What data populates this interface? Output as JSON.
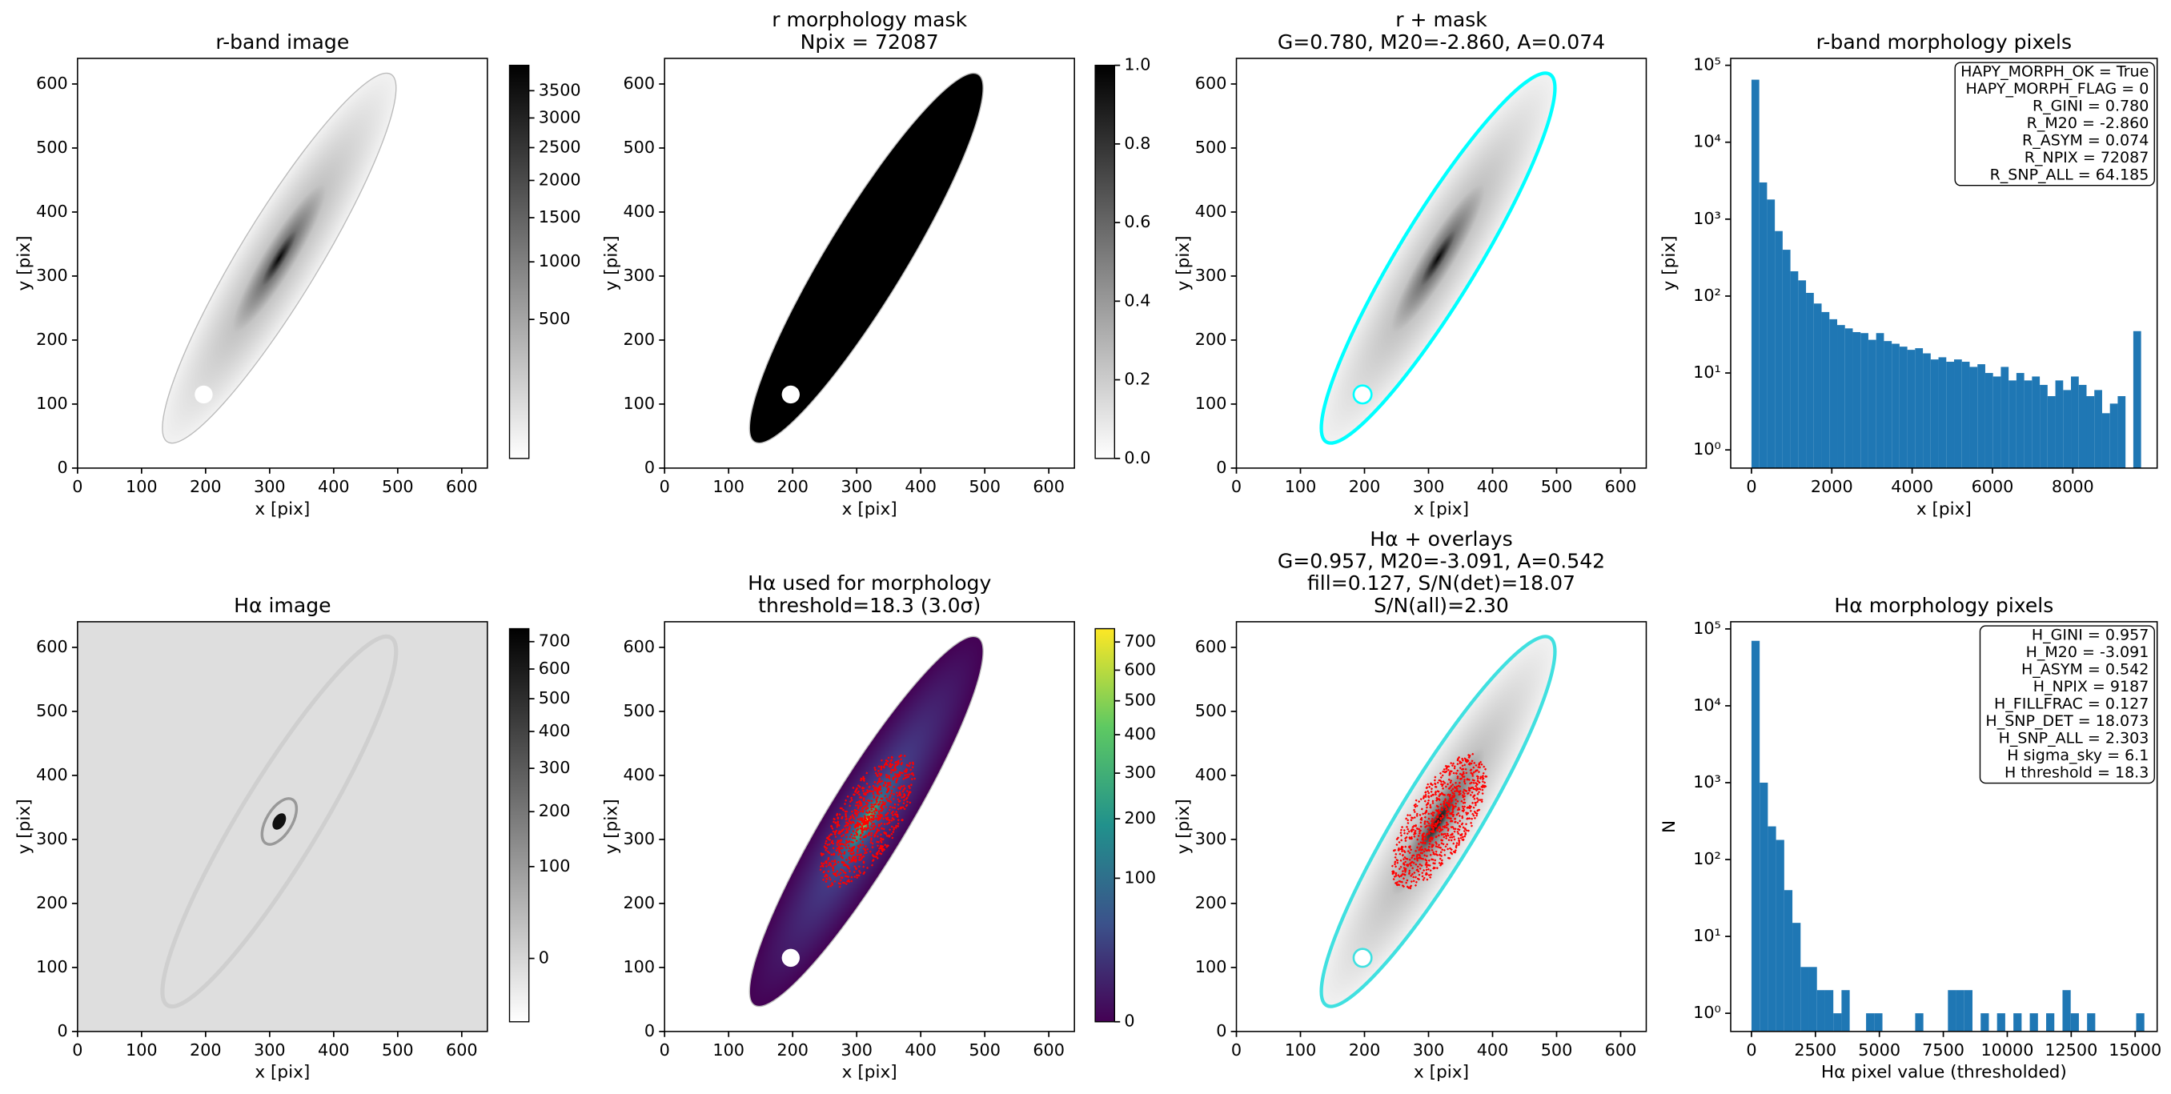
{
  "chart_data": [
    {
      "type": "image",
      "title": [
        "r-band image"
      ],
      "xlabel": "x [pix]",
      "ylabel": "y [pix]",
      "xlim": [
        0,
        640
      ],
      "ylim": [
        0,
        640
      ],
      "xticks": [
        0,
        100,
        200,
        300,
        400,
        500,
        600
      ],
      "yticks": [
        0,
        100,
        200,
        300,
        400,
        500,
        600
      ],
      "colormap": "gray_r",
      "colorbar": {
        "lim": [
          0,
          4000
        ],
        "scale": "sqrt",
        "ticks": [
          500,
          1000,
          1500,
          2000,
          2500,
          3000,
          3500
        ]
      }
    },
    {
      "type": "image",
      "title": [
        "r morphology mask",
        "Npix = 72087"
      ],
      "xlabel": "x [pix]",
      "ylabel": "y [pix]",
      "xlim": [
        0,
        640
      ],
      "ylim": [
        0,
        640
      ],
      "xticks": [
        0,
        100,
        200,
        300,
        400,
        500,
        600
      ],
      "yticks": [
        0,
        100,
        200,
        300,
        400,
        500,
        600
      ],
      "colormap": "binary",
      "colorbar": {
        "lim": [
          0,
          1
        ],
        "scale": "linear",
        "ticks": [
          {
            "value": 0,
            "label": "0.0"
          },
          0.2,
          0.4,
          0.6,
          0.8,
          {
            "value": 1,
            "label": "1.0"
          }
        ]
      }
    },
    {
      "type": "image",
      "title": [
        "r + mask",
        "G=0.780, M20=-2.860, A=0.074"
      ],
      "xlabel": "x [pix]",
      "ylabel": "y [pix]",
      "xlim": [
        0,
        640
      ],
      "ylim": [
        0,
        640
      ],
      "xticks": [
        0,
        100,
        200,
        300,
        400,
        500,
        600
      ],
      "yticks": [
        0,
        100,
        200,
        300,
        400,
        500,
        600
      ],
      "colormap": "gray_r",
      "contour_color": "#00ffff"
    },
    {
      "type": "histogram",
      "title": [
        "r-band morphology pixels"
      ],
      "xlabel": "x [pix]",
      "ylabel": "y [pix]",
      "bins": [
        0,
        194,
        388,
        582,
        776,
        970,
        1164,
        1358,
        1552,
        1746,
        1940,
        2134,
        2328,
        2522,
        2716,
        2910,
        3104,
        3298,
        3492,
        3686,
        3880,
        4074,
        4268,
        4462,
        4656,
        4850,
        5044,
        5238,
        5432,
        5626,
        5820,
        6014,
        6208,
        6402,
        6596,
        6790,
        6984,
        7178,
        7372,
        7566,
        7760,
        7954,
        8148,
        8342,
        8536,
        8730,
        8924,
        9118,
        9312,
        9506,
        9700
      ],
      "values": [
        65000,
        3000,
        1800,
        700,
        400,
        210,
        160,
        110,
        80,
        62,
        50,
        42,
        38,
        34,
        33,
        27,
        33,
        26,
        24,
        22,
        20,
        21,
        18,
        15,
        16,
        14,
        15,
        14,
        12,
        13,
        10,
        9,
        12,
        8,
        10,
        8,
        9,
        7,
        5,
        8,
        6,
        9,
        7,
        5,
        6,
        3,
        4,
        5,
        0,
        35
      ],
      "color": "#1f77b4",
      "yscale": "log",
      "xlim": [
        -517,
        10100
      ],
      "ylim": [
        0.58,
        123000
      ],
      "xticks": [
        0,
        2000,
        4000,
        6000,
        8000
      ],
      "yticks": [
        {
          "value": 1,
          "label": "10⁰"
        },
        {
          "value": 10,
          "label": "10¹"
        },
        {
          "value": 100,
          "label": "10²"
        },
        {
          "value": 1000,
          "label": "10³"
        },
        {
          "value": 10000,
          "label": "10⁴"
        },
        {
          "value": 100000,
          "label": "10⁵"
        }
      ],
      "annotation": [
        "HAPY_MORPH_OK = True",
        "HAPY_MORPH_FLAG = 0",
        "R_GINI = 0.780",
        "R_M20 = -2.860",
        "R_ASYM = 0.074",
        "R_NPIX = 72087",
        "R_SNP_ALL = 64.185"
      ]
    },
    {
      "type": "image",
      "title": [
        "Hα image"
      ],
      "xlabel": "x [pix]",
      "ylabel": "y [pix]",
      "xlim": [
        0,
        640
      ],
      "ylim": [
        0,
        640
      ],
      "xticks": [
        0,
        100,
        200,
        300,
        400,
        500,
        600
      ],
      "yticks": [
        0,
        100,
        200,
        300,
        400,
        500,
        600
      ],
      "colormap": "gray_r",
      "background": "#dedede",
      "colorbar": {
        "lim": [
          -20,
          750
        ],
        "scale": "sqrt",
        "ticks": [
          0,
          100,
          200,
          300,
          400,
          500,
          600,
          700
        ]
      }
    },
    {
      "type": "image",
      "title": [
        "Hα used for morphology",
        "threshold=18.3 (3.0σ)"
      ],
      "xlabel": "x [pix]",
      "ylabel": "y [pix]",
      "xlim": [
        0,
        640
      ],
      "ylim": [
        0,
        640
      ],
      "xticks": [
        0,
        100,
        200,
        300,
        400,
        500,
        600
      ],
      "yticks": [
        0,
        100,
        200,
        300,
        400,
        500,
        600
      ],
      "colormap": "viridis",
      "points_color": "#ff0000",
      "colorbar": {
        "lim": [
          0,
          750
        ],
        "scale": "sqrt",
        "ticks": [
          0,
          100,
          200,
          300,
          400,
          500,
          600,
          700
        ]
      }
    },
    {
      "type": "image",
      "title": [
        "Hα + overlays",
        "G=0.957, M20=-3.091, A=0.542",
        "fill=0.127, S/N(det)=18.07",
        "S/N(all)=2.30"
      ],
      "xlabel": "x [pix]",
      "ylabel": "y [pix]",
      "xlim": [
        0,
        640
      ],
      "ylim": [
        0,
        640
      ],
      "xticks": [
        0,
        100,
        200,
        300,
        400,
        500,
        600
      ],
      "yticks": [
        0,
        100,
        200,
        300,
        400,
        500,
        600
      ],
      "colormap": "gray_r",
      "contour_color": "#40e0e0",
      "points_color": "#ff0000"
    },
    {
      "type": "histogram",
      "title": [
        "Hα morphology pixels"
      ],
      "xlabel": "Hα pixel value (thresholded)",
      "ylabel": "N",
      "bins": [
        0,
        320,
        640,
        960,
        1280,
        1600,
        1920,
        2240,
        2560,
        2880,
        3200,
        3520,
        3840,
        4160,
        4480,
        4800,
        5120,
        5440,
        5760,
        6080,
        6400,
        6720,
        7040,
        7360,
        7680,
        8000,
        8320,
        8640,
        8960,
        9280,
        9600,
        9920,
        10240,
        10560,
        10880,
        11200,
        11520,
        11840,
        12160,
        12480,
        12800,
        13120,
        13440,
        13760,
        14080,
        14400,
        14720,
        15040,
        15360,
        15680
      ],
      "values": [
        70000,
        1000,
        270,
        180,
        40,
        15,
        4,
        4,
        2,
        2,
        1,
        2,
        0,
        0,
        1,
        1,
        0,
        0,
        0,
        0,
        1,
        0,
        0,
        0,
        2,
        2,
        2,
        0,
        1,
        0,
        1,
        0,
        1,
        0,
        1,
        0,
        1,
        0,
        2,
        1,
        0,
        1,
        0,
        0,
        0,
        0,
        0,
        1,
        0
      ],
      "color": "#1f77b4",
      "yscale": "log",
      "xlim": [
        -812,
        15860
      ],
      "ylim": [
        0.58,
        124000
      ],
      "xticks": [
        0,
        2500,
        5000,
        7500,
        10000,
        12500,
        15000
      ],
      "yticks": [
        {
          "value": 1,
          "label": "10⁰"
        },
        {
          "value": 10,
          "label": "10¹"
        },
        {
          "value": 100,
          "label": "10²"
        },
        {
          "value": 1000,
          "label": "10³"
        },
        {
          "value": 10000,
          "label": "10⁴"
        },
        {
          "value": 100000,
          "label": "10⁵"
        }
      ],
      "annotation": [
        "H_GINI = 0.957",
        "H_M20 = -3.091",
        "H_ASYM = 0.542",
        "H_NPIX = 9187",
        "H_FILLFRAC = 0.127",
        "H_SNP_DET = 18.073",
        "H_SNP_ALL = 2.303",
        "H sigma_sky = 6.1",
        "H threshold = 18.3"
      ]
    }
  ]
}
